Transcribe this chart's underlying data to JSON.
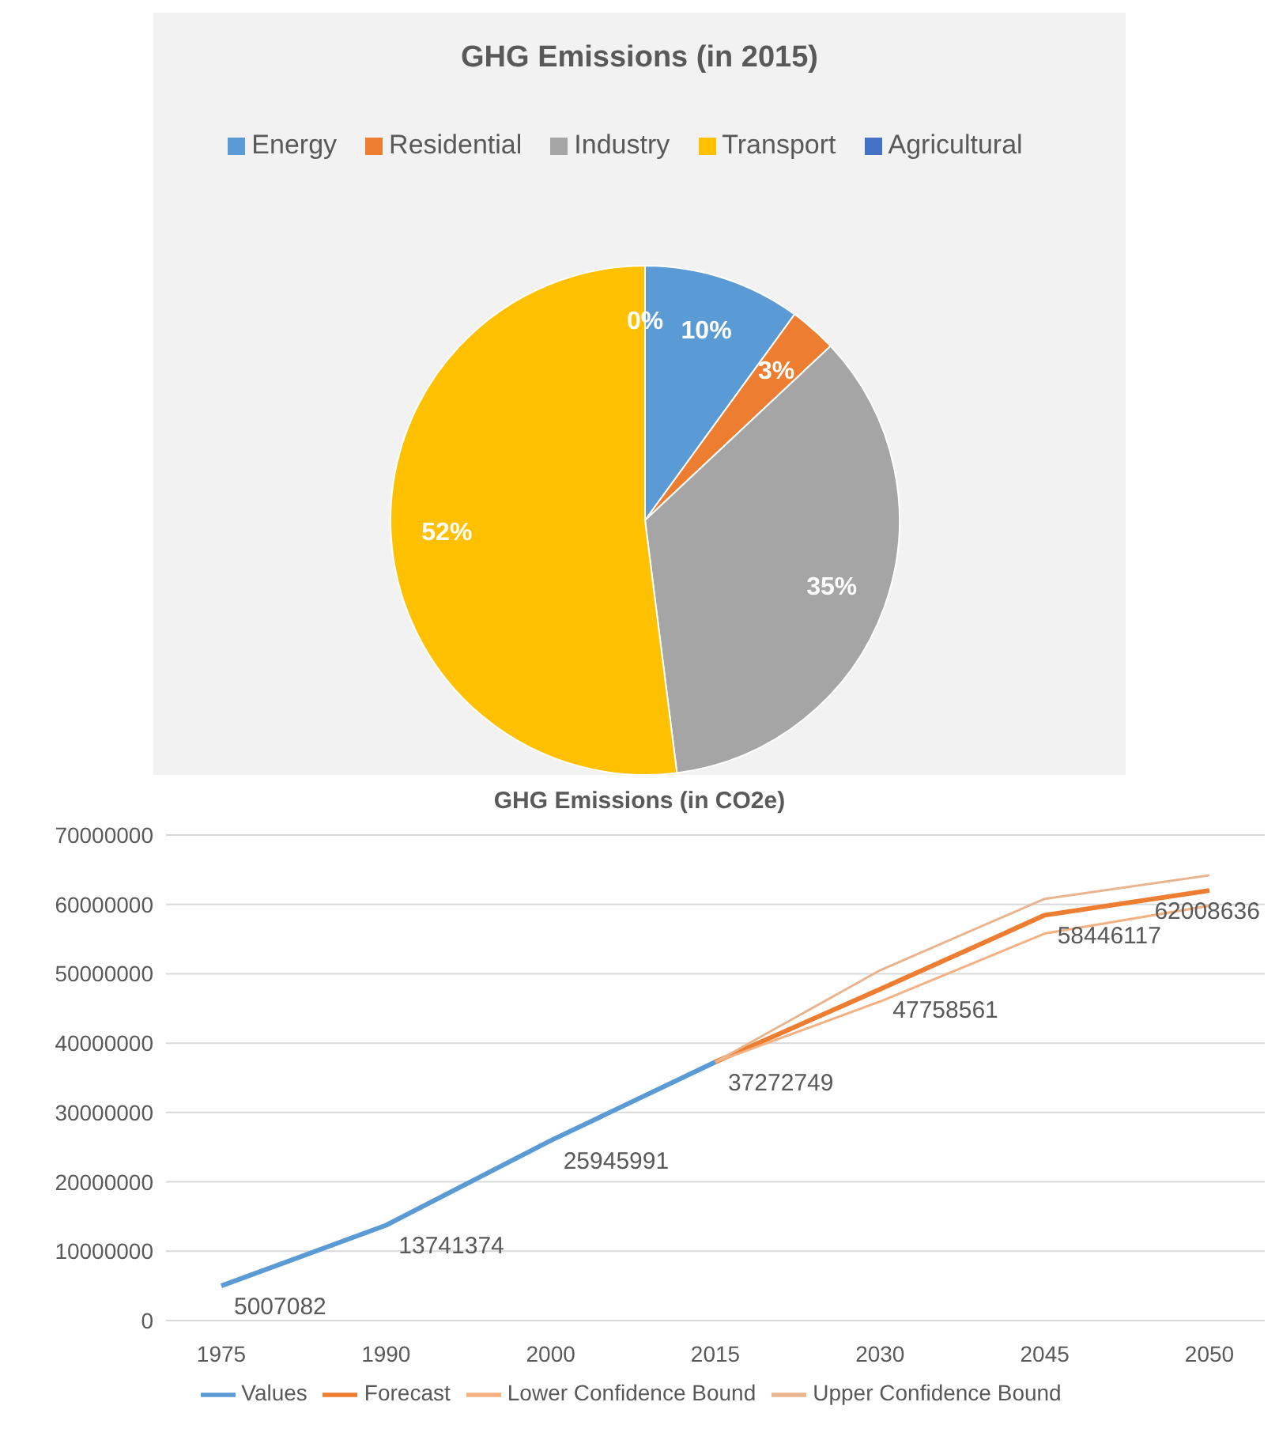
{
  "chart_data": [
    {
      "type": "pie",
      "title": "GHG Emissions (in 2015)",
      "categories": [
        "Energy",
        "Residential",
        "Industry",
        "Transport",
        "Agricultural"
      ],
      "values": [
        10,
        3,
        35,
        52,
        0
      ],
      "colors": [
        "#5b9bd5",
        "#ed7d31",
        "#a5a5a5",
        "#ffc000",
        "#4472c4"
      ],
      "value_labels": [
        "10%",
        "3%",
        "35%",
        "52%",
        "0%"
      ],
      "legend": "top"
    },
    {
      "type": "line",
      "title": "GHG Emissions (in CO2e)",
      "categories": [
        "1975",
        "1990",
        "2000",
        "2015",
        "2030",
        "2045",
        "2050"
      ],
      "ylim": [
        0,
        70000000
      ],
      "yticks": [
        0,
        10000000,
        20000000,
        30000000,
        40000000,
        50000000,
        60000000,
        70000000
      ],
      "grid": "y",
      "legend": "bottom",
      "marker": "none",
      "series": [
        {
          "name": "Values",
          "color": "#5b9bd5",
          "values": [
            5007082,
            13741374,
            25945991,
            37272749,
            null,
            null,
            null
          ],
          "value_labels": [
            "5007082",
            "13741374",
            "25945991",
            "37272749",
            null,
            null,
            null
          ]
        },
        {
          "name": "Forecast",
          "color": "#ed7d31",
          "values": [
            null,
            null,
            null,
            37272749,
            47758561,
            58446117,
            62008636
          ],
          "value_labels": [
            null,
            null,
            null,
            null,
            "47758561",
            "58446117",
            "62008636"
          ]
        },
        {
          "name": "Lower Confidence Bound",
          "color": "#f4b183",
          "values": [
            null,
            null,
            null,
            37272749,
            46000000,
            55800000,
            59800000
          ]
        },
        {
          "name": "Upper Confidence Bound",
          "color": "#e9b48e",
          "values": [
            null,
            null,
            null,
            37272749,
            50500000,
            60800000,
            64200000
          ]
        }
      ]
    }
  ]
}
